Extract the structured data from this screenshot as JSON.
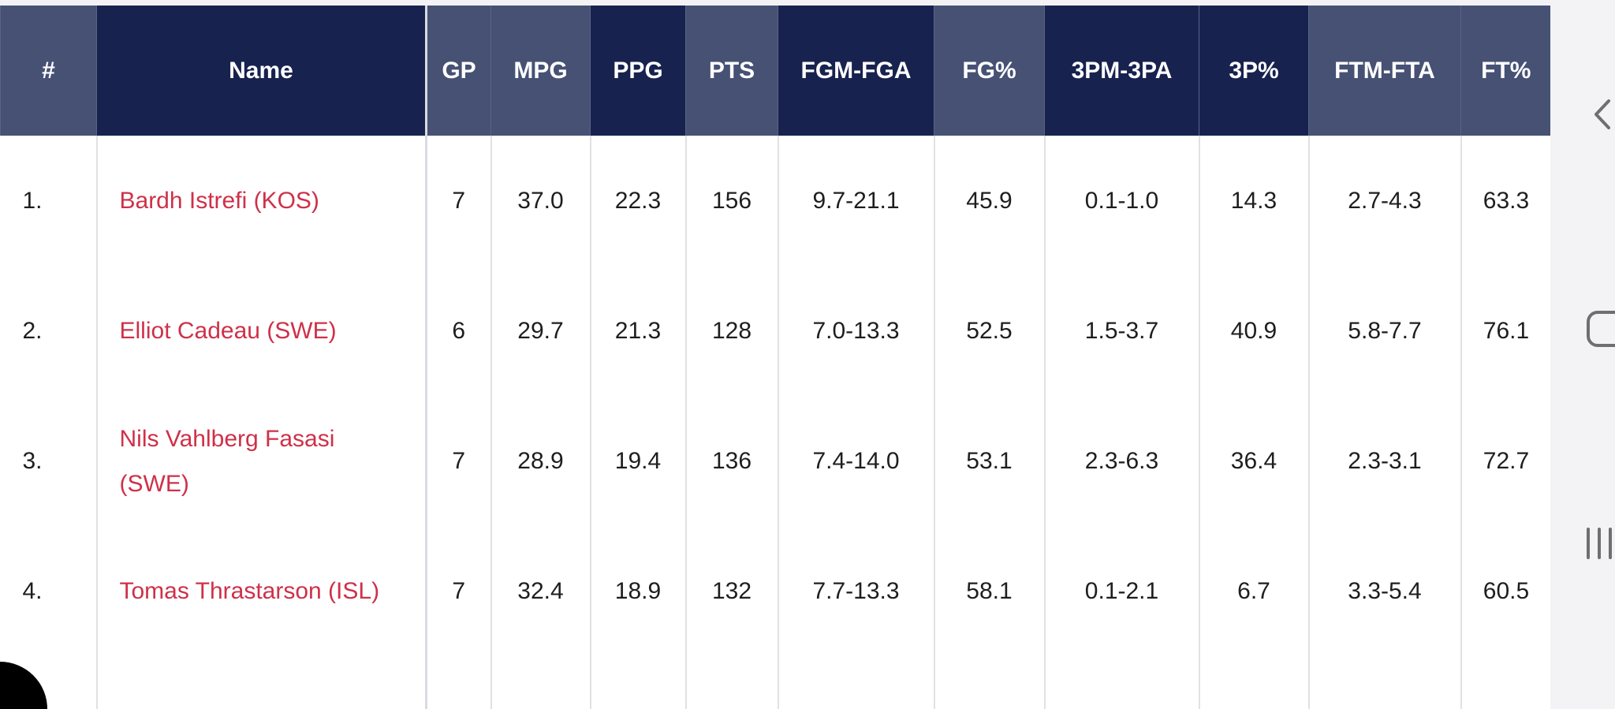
{
  "table": {
    "headers": [
      "#",
      "Name",
      "GP",
      "MPG",
      "PPG",
      "PTS",
      "FGM-FGA",
      "FG%",
      "3PM-3PA",
      "3P%",
      "FTM-FTA",
      "FT%"
    ],
    "rows": [
      {
        "rank": "1.",
        "name": "Bardh Istrefi (KOS)",
        "gp": "7",
        "mpg": "37.0",
        "ppg": "22.3",
        "pts": "156",
        "fgm_fga": "9.7-21.1",
        "fg_pct": "45.9",
        "tpm_tpa": "0.1-1.0",
        "tp_pct": "14.3",
        "ftm_fta": "2.7-4.3",
        "ft_pct": "63.3"
      },
      {
        "rank": "2.",
        "name": "Elliot Cadeau (SWE)",
        "gp": "6",
        "mpg": "29.7",
        "ppg": "21.3",
        "pts": "128",
        "fgm_fga": "7.0-13.3",
        "fg_pct": "52.5",
        "tpm_tpa": "1.5-3.7",
        "tp_pct": "40.9",
        "ftm_fta": "5.8-7.7",
        "ft_pct": "76.1"
      },
      {
        "rank": "3.",
        "name": "Nils Vahlberg Fasasi (SWE)",
        "gp": "7",
        "mpg": "28.9",
        "ppg": "19.4",
        "pts": "136",
        "fgm_fga": "7.4-14.0",
        "fg_pct": "53.1",
        "tpm_tpa": "2.3-6.3",
        "tp_pct": "36.4",
        "ftm_fta": "2.3-3.1",
        "ft_pct": "72.7"
      },
      {
        "rank": "4.",
        "name": "Tomas Thrastarson (ISL)",
        "gp": "7",
        "mpg": "32.4",
        "ppg": "18.9",
        "pts": "132",
        "fgm_fga": "7.7-13.3",
        "fg_pct": "58.1",
        "tpm_tpa": "0.1-2.1",
        "tp_pct": "6.7",
        "ftm_fta": "3.3-5.4",
        "ft_pct": "60.5"
      }
    ]
  },
  "navigation": {
    "back_icon": "chevron-left-icon",
    "home_icon": "rounded-square-icon",
    "recents_icon": "three-bars-icon"
  },
  "colors": {
    "header_dark": "#18224f",
    "header_light": "#465174",
    "player_link": "#cf3049"
  }
}
